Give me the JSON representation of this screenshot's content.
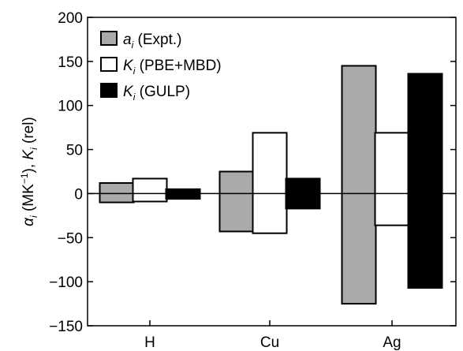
{
  "chart_data": {
    "type": "bar",
    "categories": [
      "H",
      "Cu",
      "Ag"
    ],
    "ylim": [
      -150,
      200
    ],
    "yticks": [
      200,
      150,
      100,
      50,
      0,
      -50,
      -100,
      -150
    ],
    "ytick_labels": [
      "200",
      "150",
      "100",
      "50",
      "0",
      "−50",
      "−100",
      "−150"
    ],
    "ylabel": {
      "alpha_symbol": "α",
      "alpha_sub": "i",
      "unit_prefix": " (MK",
      "unit_exp": "−1",
      "unit_suffix": "), ",
      "k_symbol": "K",
      "k_sub": "i",
      "k_suffix": " (rel)"
    },
    "grid": false,
    "legend_position": "top-left",
    "series": [
      {
        "symbol": "a",
        "sub": "i",
        "label": " (Expt.)",
        "color": "#aaaaaa",
        "ranges": [
          [
            -10,
            12
          ],
          [
            -43,
            25
          ],
          [
            -125,
            145
          ]
        ]
      },
      {
        "symbol": "K",
        "sub": "i",
        "label": " (PBE+MBD)",
        "color": "#ffffff",
        "ranges": [
          [
            -9,
            17
          ],
          [
            -45,
            69
          ],
          [
            -36,
            69
          ]
        ]
      },
      {
        "symbol": "K",
        "sub": "i",
        "label": " (GULP)",
        "color": "#000000",
        "ranges": [
          [
            -6,
            5
          ],
          [
            -17,
            17
          ],
          [
            -107,
            136
          ]
        ]
      }
    ]
  }
}
